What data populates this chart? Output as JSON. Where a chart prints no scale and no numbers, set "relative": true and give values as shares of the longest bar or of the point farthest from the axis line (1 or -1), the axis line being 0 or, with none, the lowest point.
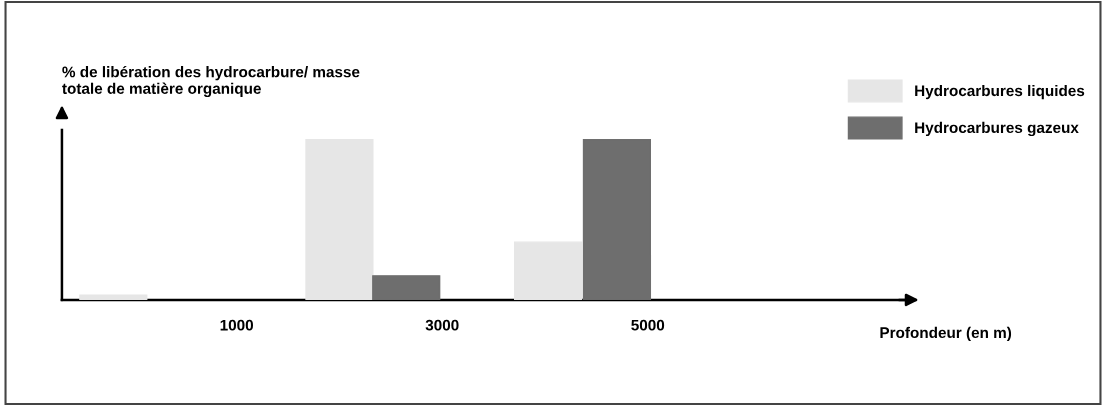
{
  "chart_data": {
    "type": "bar",
    "relative": true,
    "ylabel": "% de libération des hydrocarbure/ masse\ntotale de matière organique",
    "xlabel": "Profondeur (en m)",
    "xlim": [
      -700,
      7500
    ],
    "xticks": [
      1000,
      3000,
      5000
    ],
    "legend": "top right",
    "grid": false,
    "tick_labels": "x",
    "series": [
      {
        "name": "Hydrocarbures liquides",
        "color": "#e6e6e6",
        "x": [
          -200,
          2000,
          4030
        ],
        "values": [
          0.03,
          1,
          0.36
        ]
      },
      {
        "name": "Hydrocarbures gazeux",
        "color": "#6e6e6e",
        "x": [
          2650,
          4700
        ],
        "values": [
          0.15,
          1
        ]
      }
    ]
  }
}
